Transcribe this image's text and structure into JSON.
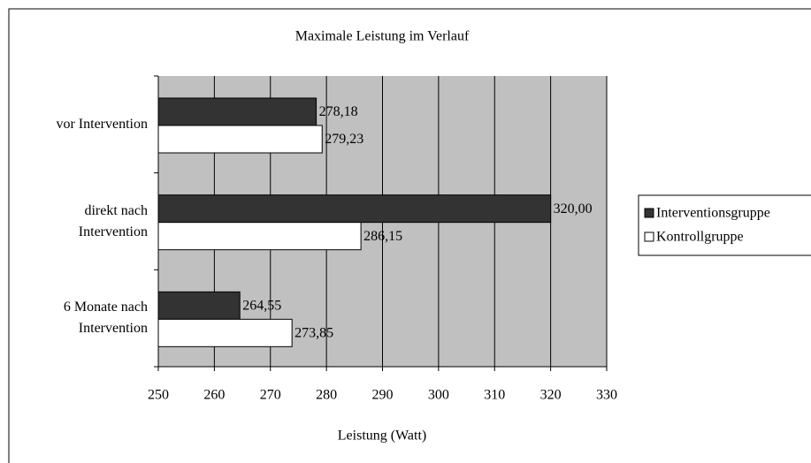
{
  "chart_data": {
    "type": "bar",
    "orientation": "horizontal",
    "title": "Maximale Leistung im Verlauf",
    "x_label": "Leistung (Watt)",
    "categories": [
      "vor Intervention",
      "direkt nach\nIntervention",
      "6 Monate nach\nIntervention"
    ],
    "series": [
      {
        "name": "Interventionsgruppe",
        "color": "#333333",
        "values": [
          278.18,
          320.0,
          264.55
        ],
        "value_labels": [
          "278,18",
          "320,00",
          "264,55"
        ]
      },
      {
        "name": "Kontrollgruppe",
        "color": "#ffffff",
        "values": [
          279.23,
          286.15,
          273.85
        ],
        "value_labels": [
          "279,23",
          "286,15",
          "273,85"
        ]
      }
    ],
    "xlim": [
      250,
      330
    ],
    "xticks": [
      250,
      260,
      270,
      280,
      290,
      300,
      310,
      320,
      330
    ],
    "grid": true,
    "legend": "right"
  }
}
